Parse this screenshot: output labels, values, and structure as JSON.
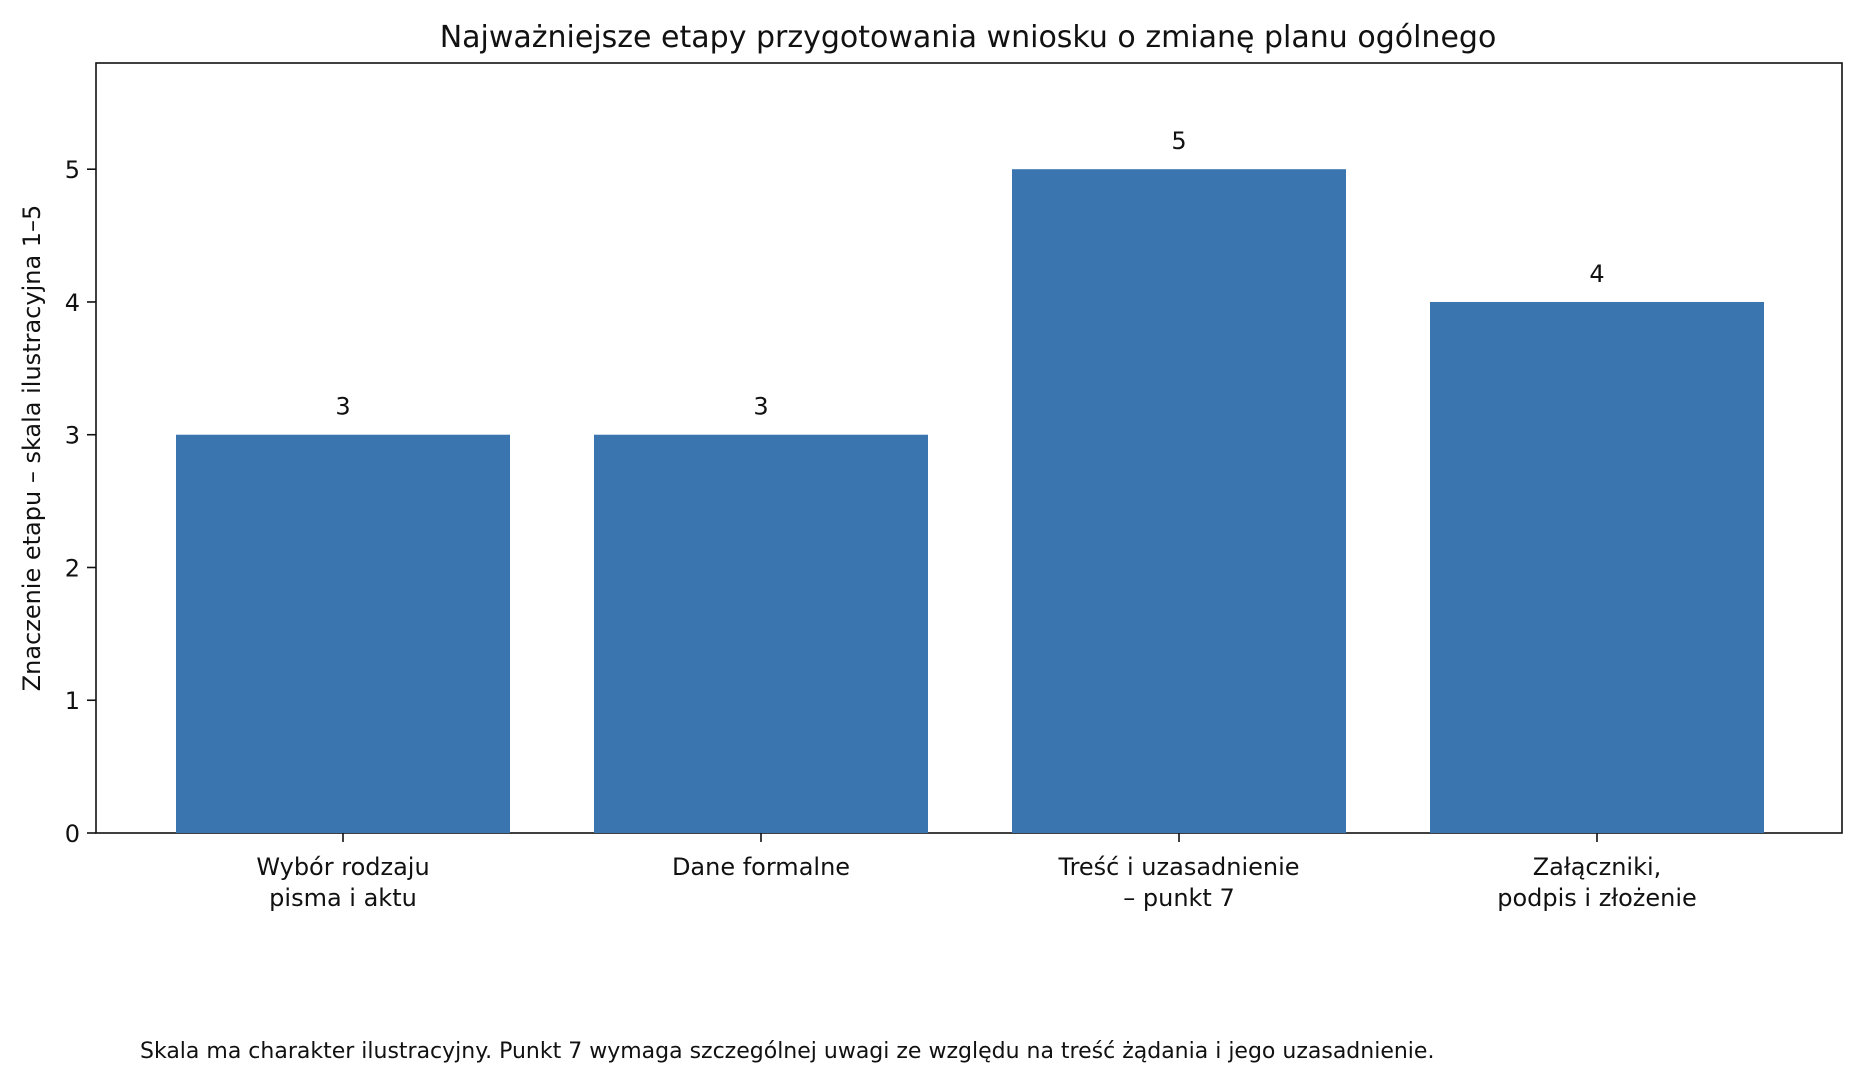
{
  "chart_data": {
    "type": "bar",
    "title": "Najważniejsze etapy przygotowania wniosku o zmianę planu ogólnego",
    "xlabel": "",
    "ylabel": "Znaczenie etapu – skala ilustracyjna 1–5",
    "categories": [
      [
        "Wybór rodzaju",
        "pisma i aktu"
      ],
      [
        "Dane formalne"
      ],
      [
        "Treść i uzasadnienie",
        "– punkt 7"
      ],
      [
        "Załączniki,",
        "podpis i złożenie"
      ]
    ],
    "values": [
      3,
      3,
      5,
      4
    ],
    "data_labels": [
      "3",
      "3",
      "5",
      "4"
    ],
    "ylim": [
      0,
      5.8
    ],
    "yticks": [
      0,
      1,
      2,
      3,
      4,
      5
    ],
    "bar_color": "#3a75b0",
    "grid": false,
    "legend": "none"
  },
  "footnote": "Skala ma charakter ilustracyjny. Punkt 7 wymaga szczególnej uwagi ze względu na treść żądania i jego uzasadnienie."
}
